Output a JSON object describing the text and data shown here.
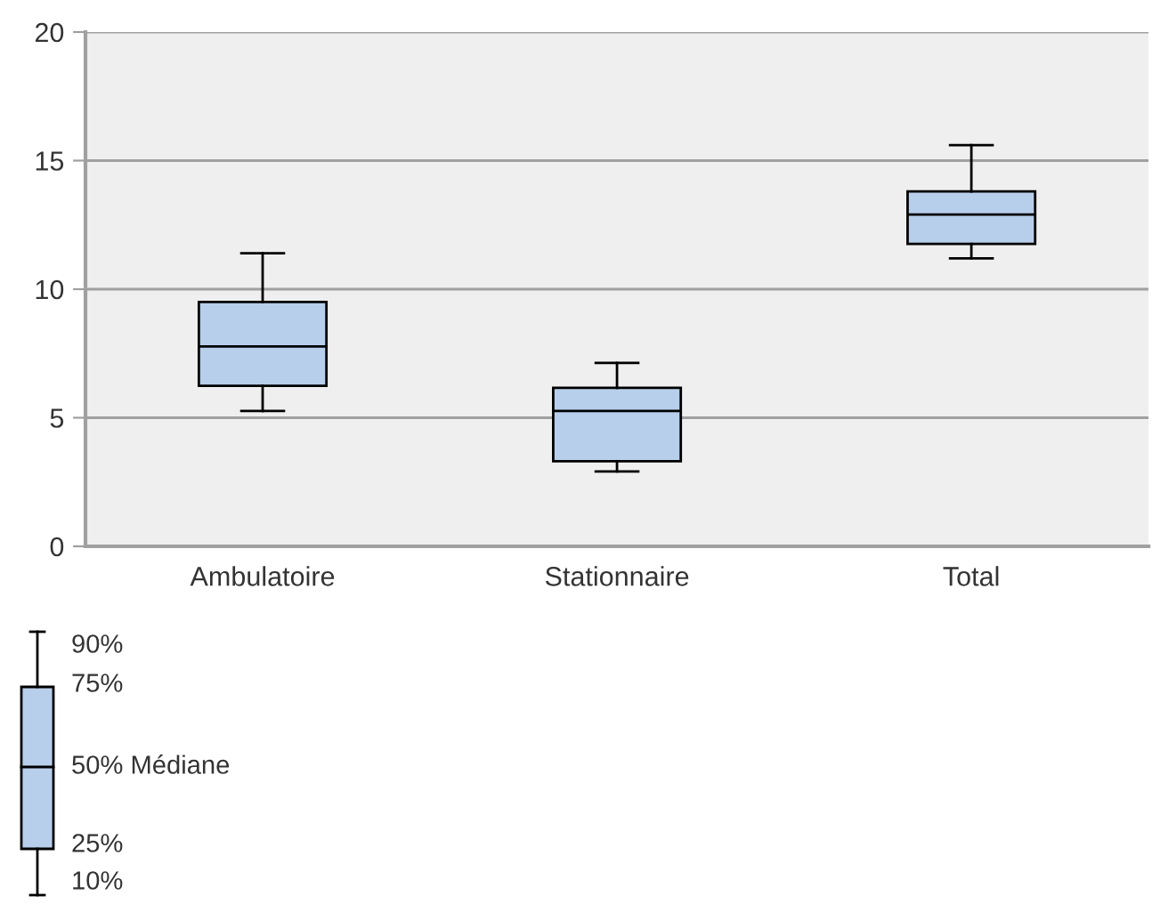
{
  "chart_data": {
    "type": "box",
    "categories": [
      "Ambulatoire",
      "Stationnaire",
      "Total"
    ],
    "boxes": [
      {
        "low": 5.26,
        "q1": 6.24,
        "median": 7.77,
        "q3": 9.5,
        "high": 11.4
      },
      {
        "low": 2.91,
        "q1": 3.31,
        "median": 5.26,
        "q3": 6.16,
        "high": 7.13
      },
      {
        "low": 11.2,
        "q1": 11.76,
        "median": 12.9,
        "q3": 13.8,
        "high": 15.6
      }
    ],
    "color": "#b8cfeb",
    "ylim": [
      0,
      20
    ],
    "yticks": [
      0,
      5,
      10,
      15,
      20
    ],
    "grid": "y",
    "annotations": [
      "90%",
      "75%",
      "50% Médiane",
      "25%",
      "10%"
    ]
  }
}
